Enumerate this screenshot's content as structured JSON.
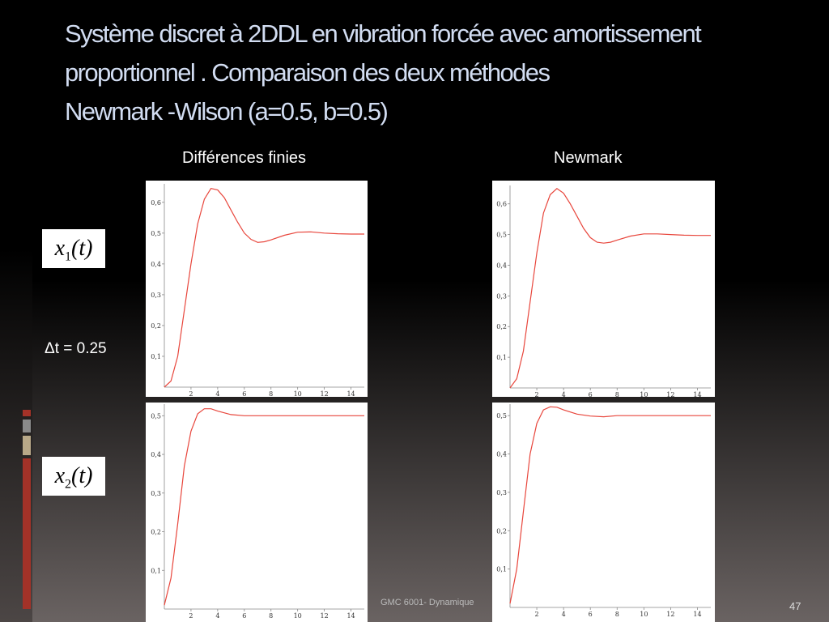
{
  "header": {
    "title": [
      "Système discret à 2DDL en vibration forcée  avec amortissement",
      "proportionnel . Comparaison des deux méthodes",
      "Newmark -Wilson (a=0.5, b=0.5)"
    ]
  },
  "column_titles": [
    "Différences finies",
    "Newmark"
  ],
  "row_labels": [
    {
      "variable": "x",
      "subscript": "1",
      "argument": "(t)"
    },
    {
      "variable": "x",
      "subscript": "2",
      "argument": "(t)"
    }
  ],
  "time_step": "Δt = 0.25",
  "footer": {
    "course": "GMC 6001-  Dynamique",
    "page": "47"
  },
  "chart_data": [
    {
      "type": "line",
      "xlim": [
        0,
        15
      ],
      "ylim": [
        0,
        0.66
      ],
      "xticks": [
        2,
        4,
        6,
        8,
        10,
        12,
        14
      ],
      "yticks": [
        {
          "value": 0.1,
          "label": "0,1"
        },
        {
          "value": 0.2,
          "label": "0,2"
        },
        {
          "value": 0.3,
          "label": "0,3"
        },
        {
          "value": 0.4,
          "label": "0,4"
        },
        {
          "value": 0.5,
          "label": "0,5"
        },
        {
          "value": 0.6,
          "label": "0,6"
        }
      ],
      "x": [
        0,
        0.5,
        1,
        1.5,
        2,
        2.5,
        3,
        3.5,
        4,
        4.5,
        5,
        5.5,
        6,
        6.5,
        7,
        7.5,
        8,
        9,
        10,
        11,
        12,
        13,
        14,
        15
      ],
      "series": [
        {
          "color": "#e8463c",
          "values": [
            0,
            0.02,
            0.1,
            0.25,
            0.4,
            0.53,
            0.61,
            0.645,
            0.64,
            0.615,
            0.575,
            0.535,
            0.5,
            0.48,
            0.47,
            0.472,
            0.478,
            0.493,
            0.503,
            0.504,
            0.5,
            0.498,
            0.497,
            0.497
          ]
        }
      ]
    },
    {
      "type": "line",
      "xlim": [
        0,
        15
      ],
      "ylim": [
        0,
        0.66
      ],
      "xticks": [
        2,
        4,
        6,
        8,
        10,
        12,
        14
      ],
      "yticks": [
        {
          "value": 0.1,
          "label": "0,1"
        },
        {
          "value": 0.2,
          "label": "0,2"
        },
        {
          "value": 0.3,
          "label": "0,3"
        },
        {
          "value": 0.4,
          "label": "0,4"
        },
        {
          "value": 0.5,
          "label": "0,5"
        },
        {
          "value": 0.6,
          "label": "0,6"
        }
      ],
      "x": [
        0,
        0.5,
        1,
        1.5,
        2,
        2.5,
        3,
        3.5,
        4,
        4.5,
        5,
        5.5,
        6,
        6.5,
        7,
        7.5,
        8,
        9,
        10,
        11,
        12,
        13,
        14,
        15
      ],
      "series": [
        {
          "color": "#e8463c",
          "values": [
            0,
            0.03,
            0.12,
            0.28,
            0.44,
            0.57,
            0.63,
            0.65,
            0.635,
            0.6,
            0.56,
            0.52,
            0.49,
            0.475,
            0.472,
            0.475,
            0.482,
            0.495,
            0.502,
            0.502,
            0.5,
            0.498,
            0.497,
            0.497
          ]
        }
      ]
    },
    {
      "type": "line",
      "xlim": [
        0,
        15
      ],
      "ylim": [
        0,
        0.53
      ],
      "xticks": [
        2,
        4,
        6,
        8,
        10,
        12,
        14
      ],
      "yticks": [
        {
          "value": 0.1,
          "label": "0,1"
        },
        {
          "value": 0.2,
          "label": "0,2"
        },
        {
          "value": 0.3,
          "label": "0,3"
        },
        {
          "value": 0.4,
          "label": "0,4"
        },
        {
          "value": 0.5,
          "label": "0,5"
        }
      ],
      "x": [
        0,
        0.5,
        1,
        1.5,
        2,
        2.5,
        3,
        3.5,
        4,
        5,
        6,
        7,
        8,
        10,
        12,
        15
      ],
      "series": [
        {
          "color": "#e8463c",
          "values": [
            0.01,
            0.08,
            0.22,
            0.37,
            0.46,
            0.505,
            0.518,
            0.518,
            0.512,
            0.503,
            0.5,
            0.5,
            0.5,
            0.5,
            0.5,
            0.5
          ]
        }
      ]
    },
    {
      "type": "line",
      "xlim": [
        0,
        15
      ],
      "ylim": [
        0,
        0.53
      ],
      "xticks": [
        2,
        4,
        6,
        8,
        10,
        12,
        14
      ],
      "yticks": [
        {
          "value": 0.1,
          "label": "0,1"
        },
        {
          "value": 0.2,
          "label": "0,2"
        },
        {
          "value": 0.3,
          "label": "0,3"
        },
        {
          "value": 0.4,
          "label": "0,4"
        },
        {
          "value": 0.5,
          "label": "0,5"
        }
      ],
      "x": [
        0,
        0.5,
        1,
        1.5,
        2,
        2.5,
        3,
        3.5,
        4,
        5,
        6,
        7,
        8,
        10,
        12,
        15
      ],
      "series": [
        {
          "color": "#e8463c",
          "values": [
            0.01,
            0.1,
            0.25,
            0.4,
            0.48,
            0.515,
            0.523,
            0.522,
            0.515,
            0.504,
            0.499,
            0.497,
            0.5,
            0.5,
            0.5,
            0.5
          ]
        }
      ]
    }
  ]
}
